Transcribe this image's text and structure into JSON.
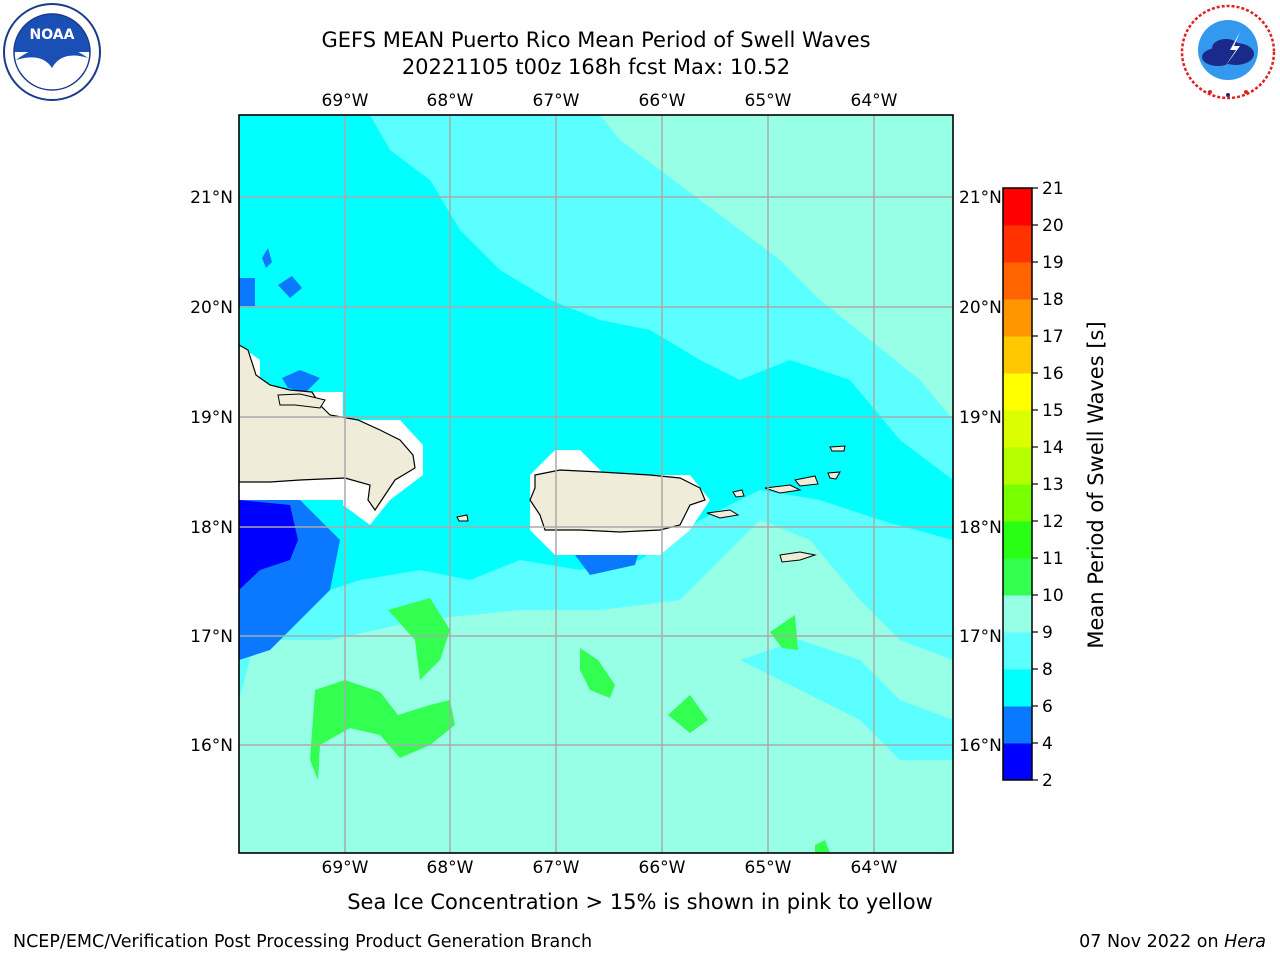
{
  "header": {
    "title_line1": "GEFS MEAN Puerto Rico Mean Period of Swell Waves",
    "title_line2": "20221105 t00z 168h fcst   Max: 10.52"
  },
  "logos": {
    "noaa_text": "NOAA",
    "nws_text": "NATIONAL WEATHER SERVICE",
    "noaa_ring_text": "NATIONAL OCEANIC AND ATMOSPHERIC ADMINISTRATION · U.S. DEPARTMENT OF COMMERCE"
  },
  "map": {
    "lon_labels": [
      "69°W",
      "68°W",
      "67°W",
      "66°W",
      "65°W",
      "64°W"
    ],
    "lat_labels": [
      "21°N",
      "20°N",
      "19°N",
      "18°N",
      "17°N",
      "16°N"
    ]
  },
  "colorbar": {
    "label": "Mean Period of Swell Waves [s]",
    "ticks": [
      "2",
      "4",
      "6",
      "8",
      "9",
      "10",
      "11",
      "12",
      "13",
      "14",
      "15",
      "16",
      "17",
      "18",
      "19",
      "20",
      "21"
    ],
    "colors": [
      "#0000ff",
      "#0a78ff",
      "#00ffff",
      "#5cffff",
      "#96ffe6",
      "#32ff50",
      "#28ff14",
      "#78ff00",
      "#b4ff00",
      "#dcff00",
      "#ffff00",
      "#ffc800",
      "#ff9600",
      "#ff6400",
      "#ff3200",
      "#ff0000"
    ]
  },
  "note": "Sea Ice Concentration > 15% is shown in pink to yellow",
  "footer": {
    "left": "NCEP/EMC/Verification Post Processing Product Generation Branch",
    "right_prefix": "07 Nov 2022 on ",
    "right_host": "Hera"
  }
}
